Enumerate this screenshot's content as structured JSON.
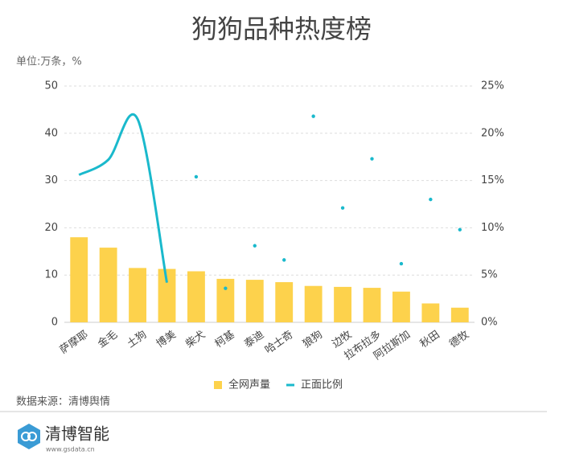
{
  "chart_data": {
    "type": "bar-line",
    "title": "狗狗品种热度榜",
    "unit_note": "单位:万条，%",
    "source": "数据来源：清博舆情",
    "brand": "清博智能",
    "brand_url": "www.gsdata.cn",
    "categories": [
      "萨摩耶",
      "金毛",
      "土狗",
      "博美",
      "柴犬",
      "柯基",
      "泰迪",
      "哈士奇",
      "狼狗",
      "边牧",
      "拉布拉多",
      "阿拉斯加",
      "秋田",
      "德牧"
    ],
    "series": [
      {
        "name": "全网声量",
        "color": "#fdd24c",
        "values": [
          18,
          15.8,
          11.5,
          11.3,
          10.8,
          9.2,
          9,
          8.5,
          7.7,
          7.5,
          7.3,
          6.5,
          4,
          3.1
        ]
      },
      {
        "name": "正面比例",
        "color": "#1ab9cc",
        "axis": "y2",
        "line_until_index": 3,
        "values": [
          15.6,
          17.2,
          21.5,
          4.2,
          15.4,
          3.6,
          8.1,
          6.6,
          21.8,
          12.1,
          17.3,
          6.2,
          13,
          9.8
        ]
      }
    ],
    "ylim": [
      0,
      50
    ],
    "yticks": [
      0,
      10,
      20,
      30,
      40,
      50
    ],
    "y2lim": [
      0,
      25
    ],
    "y2ticks": [
      {
        "value": 0,
        "label": "0%"
      },
      {
        "value": 5,
        "label": "5%"
      },
      {
        "value": 10,
        "label": "10%"
      },
      {
        "value": 15,
        "label": "15%"
      },
      {
        "value": 20,
        "label": "20%"
      },
      {
        "value": 25,
        "label": "25%"
      }
    ],
    "grid": true,
    "legend": "bottom"
  }
}
